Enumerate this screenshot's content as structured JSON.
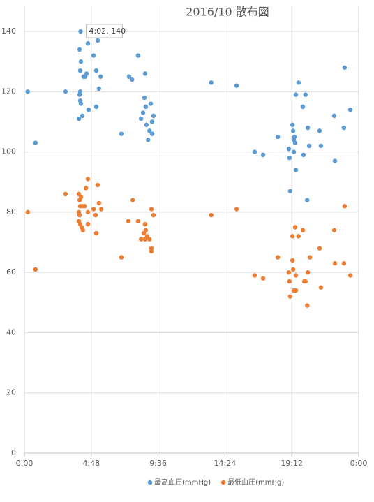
{
  "chart_data": {
    "type": "scatter",
    "title": "2016/10 散布図",
    "annotation": "4:02, 140",
    "xlim": [
      0,
      1
    ],
    "xticks": [
      {
        "value": 0,
        "label": "0:00"
      },
      {
        "value": 0.2,
        "label": "4:48"
      },
      {
        "value": 0.4,
        "label": "9:36"
      },
      {
        "value": 0.6,
        "label": "14:24"
      },
      {
        "value": 0.8,
        "label": "19:12"
      },
      {
        "value": 1,
        "label": "0:00"
      }
    ],
    "ylim": [
      0,
      140
    ],
    "yticks": [
      0,
      20,
      40,
      60,
      80,
      100,
      120,
      140
    ],
    "grid": true,
    "legend": "bottom",
    "series": [
      {
        "name": "最高血圧(mmHg)",
        "color": "#5b9bd5",
        "x": [
          0.01,
          0.033,
          0.123,
          0.168,
          0.165,
          0.167,
          0.167,
          0.165,
          0.167,
          0.169,
          0.173,
          0.163,
          0.169,
          0.177,
          0.182,
          0.186,
          0.19,
          0.192,
          0.207,
          0.215,
          0.219,
          0.228,
          0.223,
          0.215,
          0.29,
          0.313,
          0.322,
          0.34,
          0.361,
          0.359,
          0.363,
          0.355,
          0.349,
          0.365,
          0.378,
          0.386,
          0.382,
          0.374,
          0.382,
          0.37,
          0.559,
          0.635,
          0.689,
          0.714,
          0.758,
          0.791,
          0.793,
          0.802,
          0.804,
          0.806,
          0.808,
          0.81,
          0.806,
          0.812,
          0.795,
          0.812,
          0.82,
          0.833,
          0.841,
          0.848,
          0.835,
          0.852,
          0.846,
          0.883,
          0.887,
          0.927,
          0.929,
          0.956,
          0.958,
          0.975
        ],
        "values": [
          120,
          103,
          120,
          140,
          134,
          127,
          120,
          119,
          117,
          116,
          112,
          111,
          130,
          125,
          125,
          126,
          136,
          114,
          132,
          127,
          137,
          125,
          121,
          115,
          106,
          125,
          124,
          132,
          126,
          118,
          115,
          113,
          111,
          109,
          116,
          112,
          110,
          107,
          106,
          104,
          123,
          122,
          100,
          99,
          105,
          101,
          98,
          109,
          107,
          104,
          105,
          103,
          100,
          94,
          87,
          119,
          123,
          115,
          119,
          108,
          99,
          102,
          84,
          107,
          102,
          112,
          97,
          108,
          128,
          114
        ]
      },
      {
        "name": "最低血圧(mmHg)",
        "color": "#ed7d31",
        "x": [
          0.01,
          0.033,
          0.123,
          0.163,
          0.169,
          0.165,
          0.167,
          0.173,
          0.18,
          0.19,
          0.184,
          0.163,
          0.165,
          0.163,
          0.167,
          0.171,
          0.175,
          0.19,
          0.19,
          0.207,
          0.213,
          0.215,
          0.219,
          0.223,
          0.23,
          0.29,
          0.324,
          0.311,
          0.34,
          0.349,
          0.357,
          0.363,
          0.361,
          0.367,
          0.361,
          0.374,
          0.38,
          0.386,
          0.38,
          0.38,
          0.559,
          0.635,
          0.689,
          0.714,
          0.758,
          0.791,
          0.793,
          0.795,
          0.802,
          0.802,
          0.804,
          0.806,
          0.81,
          0.812,
          0.812,
          0.82,
          0.833,
          0.837,
          0.841,
          0.846,
          0.848,
          0.854,
          0.883,
          0.887,
          0.927,
          0.929,
          0.956,
          0.958,
          0.975
        ],
        "values": [
          80,
          61,
          86,
          86,
          85,
          84,
          82,
          82,
          82,
          91,
          88,
          80,
          79,
          77,
          76,
          75,
          74,
          80,
          76,
          81,
          79,
          73,
          89,
          83,
          81,
          65,
          84,
          77,
          77,
          71,
          73,
          74,
          76,
          72,
          71,
          71,
          81,
          79,
          68,
          67,
          79,
          81,
          59,
          58,
          65,
          60,
          57,
          52,
          72,
          64,
          61,
          54,
          75,
          59,
          54,
          72,
          74,
          57,
          57,
          49,
          60,
          65,
          68,
          55,
          74,
          63,
          63,
          82,
          59
        ]
      }
    ]
  }
}
